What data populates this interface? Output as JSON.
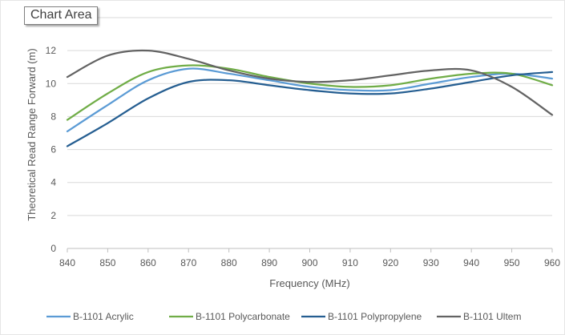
{
  "tooltip": {
    "label": "Chart Area"
  },
  "chart_data": {
    "type": "line",
    "title": "",
    "xlabel": "Frequency (MHz)",
    "ylabel": "Theoretical Read Range Forward (m)",
    "xlim": [
      840,
      960
    ],
    "ylim": [
      0,
      14
    ],
    "x_ticks": [
      840,
      850,
      860,
      870,
      880,
      890,
      900,
      910,
      920,
      930,
      940,
      950,
      960
    ],
    "y_ticks": [
      0,
      2,
      4,
      6,
      8,
      10,
      12
    ],
    "grid": "horizontal",
    "legend_position": "bottom",
    "series": [
      {
        "name": "B-1101 Acrylic",
        "color": "#5b9bd5",
        "x": [
          840,
          850,
          860,
          870,
          880,
          890,
          900,
          910,
          920,
          930,
          940,
          950,
          960
        ],
        "y": [
          7.1,
          8.7,
          10.2,
          10.9,
          10.6,
          10.2,
          9.8,
          9.6,
          9.6,
          10.0,
          10.4,
          10.6,
          10.3
        ]
      },
      {
        "name": "B-1101 Polycarbonate",
        "color": "#70ad47",
        "x": [
          840,
          850,
          860,
          870,
          880,
          890,
          900,
          910,
          920,
          930,
          940,
          950,
          960
        ],
        "y": [
          7.8,
          9.4,
          10.7,
          11.1,
          10.9,
          10.4,
          10.0,
          9.8,
          9.9,
          10.3,
          10.6,
          10.6,
          9.9
        ]
      },
      {
        "name": "B-1101 Polypropylene",
        "color": "#255e91",
        "x": [
          840,
          850,
          860,
          870,
          880,
          890,
          900,
          910,
          920,
          930,
          940,
          950,
          960
        ],
        "y": [
          6.2,
          7.6,
          9.1,
          10.1,
          10.2,
          9.9,
          9.6,
          9.4,
          9.4,
          9.7,
          10.1,
          10.5,
          10.7
        ]
      },
      {
        "name": "B-1101 Ultem",
        "color": "#636363",
        "x": [
          840,
          850,
          860,
          870,
          880,
          890,
          900,
          910,
          920,
          930,
          940,
          950,
          960
        ],
        "y": [
          10.4,
          11.7,
          12.0,
          11.5,
          10.8,
          10.3,
          10.1,
          10.2,
          10.5,
          10.8,
          10.8,
          9.8,
          8.1
        ]
      }
    ]
  }
}
